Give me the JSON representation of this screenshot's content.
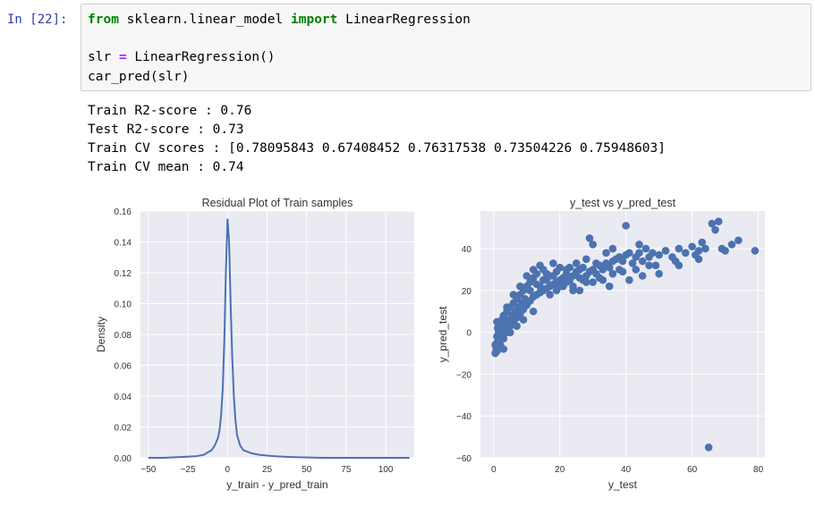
{
  "cell": {
    "prompt": "In [22]:",
    "line1": {
      "kw1": "from",
      "mod": "sklearn.linear_model",
      "kw2": "import",
      "name": "LinearRegression"
    },
    "line2": {
      "lhs": "slr",
      "op": "=",
      "rhs": "LinearRegression()"
    },
    "line3": "car_pred(slr)"
  },
  "output": {
    "lines": [
      "Train R2-score : 0.76",
      "Test R2-score : 0.73",
      "Train CV scores : [0.78095843 0.67408452 0.76317538 0.73504226 0.75948603]",
      "Train CV mean : 0.74"
    ]
  },
  "colors": {
    "plot_bg": "#eaeaf2",
    "series": "#4c72b0",
    "grid": "#ffffff",
    "prompt": "#303f9f",
    "keyword": "#008000",
    "operator": "#aa22ff"
  },
  "chart_data": [
    {
      "type": "line",
      "title": "Residual Plot of Train samples",
      "xlabel": "y_train - y_pred_train",
      "ylabel": "Density",
      "xlim": [
        -55,
        118
      ],
      "ylim": [
        0,
        0.16
      ],
      "xticks": [
        -50,
        -25,
        0,
        25,
        50,
        75,
        100
      ],
      "xtick_labels": [
        "−50",
        "−25",
        "0",
        "25",
        "50",
        "75",
        "100"
      ],
      "yticks": [
        0,
        0.02,
        0.04,
        0.06,
        0.08,
        0.1,
        0.12,
        0.14,
        0.16
      ],
      "ytick_labels": [
        "0.00",
        "0.02",
        "0.04",
        "0.06",
        "0.08",
        "0.10",
        "0.12",
        "0.14",
        "0.16"
      ],
      "grid": true,
      "x": [
        -50,
        -40,
        -30,
        -20,
        -15,
        -10,
        -8,
        -6,
        -5,
        -4,
        -3,
        -2,
        -1,
        0,
        1,
        2,
        3,
        4,
        5,
        6,
        8,
        10,
        15,
        20,
        30,
        40,
        60,
        80,
        100,
        115
      ],
      "y": [
        0,
        0,
        0.0005,
        0.001,
        0.002,
        0.005,
        0.008,
        0.013,
        0.018,
        0.028,
        0.045,
        0.075,
        0.12,
        0.155,
        0.14,
        0.1,
        0.065,
        0.04,
        0.025,
        0.015,
        0.008,
        0.005,
        0.003,
        0.002,
        0.001,
        0.0005,
        0,
        0,
        0,
        0
      ]
    },
    {
      "type": "scatter",
      "title": "y_test vs y_pred_test",
      "xlabel": "y_test",
      "ylabel": "y_pred_test",
      "xlim": [
        -4,
        82
      ],
      "ylim": [
        -60,
        58
      ],
      "xticks": [
        0,
        20,
        40,
        60,
        80
      ],
      "xtick_labels": [
        "0",
        "20",
        "40",
        "60",
        "80"
      ],
      "yticks": [
        -60,
        -40,
        -20,
        0,
        20,
        40
      ],
      "ytick_labels": [
        "−60",
        "−40",
        "−20",
        "0",
        "20",
        "40"
      ],
      "grid": true,
      "points": [
        [
          0.5,
          -10
        ],
        [
          0.8,
          -8
        ],
        [
          1,
          -5
        ],
        [
          1,
          -2
        ],
        [
          1.2,
          2
        ],
        [
          1.5,
          -7
        ],
        [
          1.5,
          0
        ],
        [
          2,
          -4
        ],
        [
          2,
          4
        ],
        [
          2.5,
          1
        ],
        [
          2.5,
          6
        ],
        [
          3,
          -3
        ],
        [
          3,
          2
        ],
        [
          3,
          8
        ],
        [
          3.5,
          5
        ],
        [
          4,
          0
        ],
        [
          4,
          10
        ],
        [
          4.5,
          6
        ],
        [
          5,
          3
        ],
        [
          5,
          12
        ],
        [
          5.5,
          8
        ],
        [
          6,
          5
        ],
        [
          6,
          14
        ],
        [
          6.5,
          10
        ],
        [
          7,
          7
        ],
        [
          7,
          16
        ],
        [
          7.5,
          12
        ],
        [
          8,
          9
        ],
        [
          8,
          18
        ],
        [
          8.5,
          14
        ],
        [
          9,
          11
        ],
        [
          9,
          20
        ],
        [
          9.5,
          16
        ],
        [
          10,
          13
        ],
        [
          10,
          22
        ],
        [
          11,
          15
        ],
        [
          11,
          24
        ],
        [
          12,
          17
        ],
        [
          12,
          26
        ],
        [
          13,
          18
        ],
        [
          13,
          28
        ],
        [
          14,
          19
        ],
        [
          14,
          22
        ],
        [
          15,
          20
        ],
        [
          15,
          30
        ],
        [
          16,
          21
        ],
        [
          16,
          25
        ],
        [
          17,
          22
        ],
        [
          17,
          18
        ],
        [
          18,
          23
        ],
        [
          18,
          27
        ],
        [
          19,
          24
        ],
        [
          19,
          20
        ],
        [
          20,
          25
        ],
        [
          20,
          22
        ],
        [
          21,
          26
        ],
        [
          22,
          24
        ],
        [
          22,
          28
        ],
        [
          23,
          25
        ],
        [
          24,
          27
        ],
        [
          24,
          22
        ],
        [
          25,
          29
        ],
        [
          26,
          26
        ],
        [
          26,
          20
        ],
        [
          27,
          31
        ],
        [
          28,
          27
        ],
        [
          28,
          35
        ],
        [
          29,
          29
        ],
        [
          30,
          30
        ],
        [
          30,
          24
        ],
        [
          31,
          28
        ],
        [
          32,
          32
        ],
        [
          32,
          26
        ],
        [
          33,
          30
        ],
        [
          34,
          33
        ],
        [
          34,
          38
        ],
        [
          35,
          31
        ],
        [
          36,
          34
        ],
        [
          36,
          28
        ],
        [
          37,
          35
        ],
        [
          38,
          36
        ],
        [
          38,
          30
        ],
        [
          39,
          34
        ],
        [
          40,
          37
        ],
        [
          41,
          38
        ],
        [
          42,
          33
        ],
        [
          43,
          36
        ],
        [
          44,
          38
        ],
        [
          45,
          34
        ],
        [
          46,
          40
        ],
        [
          47,
          36
        ],
        [
          48,
          38
        ],
        [
          49,
          32
        ],
        [
          50,
          37
        ],
        [
          52,
          39
        ],
        [
          54,
          36
        ],
        [
          56,
          40
        ],
        [
          58,
          38
        ],
        [
          60,
          41
        ],
        [
          62,
          39
        ],
        [
          64,
          40
        ],
        [
          66,
          52
        ],
        [
          67,
          49
        ],
        [
          68,
          53
        ],
        [
          69,
          40
        ],
        [
          70,
          39
        ],
        [
          74,
          44
        ],
        [
          79,
          39
        ],
        [
          40,
          51
        ],
        [
          29,
          45
        ],
        [
          65,
          -55
        ],
        [
          3,
          -8
        ],
        [
          2,
          -6
        ],
        [
          1,
          -9
        ],
        [
          4,
          12
        ],
        [
          6,
          18
        ],
        [
          8,
          22
        ],
        [
          10,
          27
        ],
        [
          12,
          30
        ],
        [
          14,
          32
        ],
        [
          16,
          28
        ],
        [
          18,
          33
        ],
        [
          20,
          31
        ],
        [
          22,
          30
        ],
        [
          25,
          33
        ],
        [
          27,
          25
        ],
        [
          33,
          25
        ],
        [
          41,
          25
        ],
        [
          50,
          28
        ],
        [
          56,
          32
        ],
        [
          62,
          35
        ],
        [
          45,
          27
        ],
        [
          35,
          22
        ],
        [
          24,
          20
        ],
        [
          12,
          10
        ],
        [
          9,
          6
        ],
        [
          7,
          3
        ],
        [
          5,
          0
        ],
        [
          3,
          -1
        ],
        [
          2,
          3
        ],
        [
          1,
          5
        ],
        [
          0.5,
          -6
        ],
        [
          11,
          20
        ],
        [
          13,
          23
        ],
        [
          15,
          25
        ],
        [
          17,
          27
        ],
        [
          19,
          29
        ],
        [
          21,
          22
        ],
        [
          23,
          31
        ],
        [
          26,
          30
        ],
        [
          28,
          24
        ],
        [
          31,
          33
        ],
        [
          39,
          29
        ],
        [
          43,
          30
        ],
        [
          47,
          32
        ],
        [
          55,
          34
        ],
        [
          61,
          37
        ],
        [
          63,
          43
        ],
        [
          72,
          42
        ],
        [
          36,
          40
        ],
        [
          30,
          42
        ],
        [
          44,
          42
        ]
      ]
    }
  ]
}
